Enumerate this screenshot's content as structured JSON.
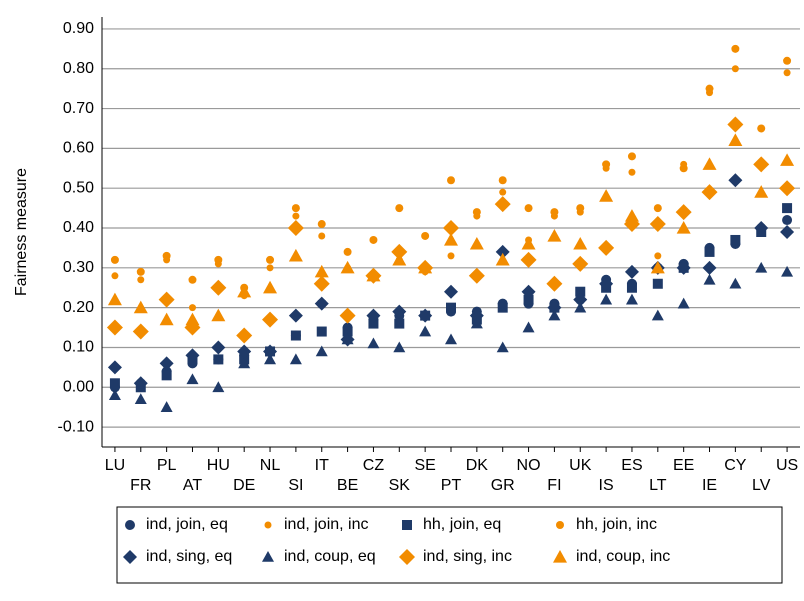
{
  "chart_data": {
    "type": "scatter",
    "y_label": "Fairness measure",
    "categories": [
      "LU",
      "FR",
      "PL",
      "AT",
      "HU",
      "DE",
      "NL",
      "SI",
      "IT",
      "BE",
      "CZ",
      "SK",
      "SE",
      "PT",
      "DK",
      "GR",
      "NO",
      "FI",
      "UK",
      "IS",
      "ES",
      "LT",
      "EE",
      "IE",
      "CY",
      "LV",
      "US"
    ],
    "ylim": [
      -0.15,
      0.93
    ],
    "yticks": [
      {
        "value": -0.1,
        "label": "-0.10"
      },
      {
        "value": 0,
        "label": "0.00"
      },
      {
        "value": 0.1,
        "label": "0.10"
      },
      {
        "value": 0.2,
        "label": "0.20"
      },
      {
        "value": 0.3,
        "label": "0.30"
      },
      {
        "value": 0.4,
        "label": "0.40"
      },
      {
        "value": 0.5,
        "label": "0.50"
      },
      {
        "value": 0.6,
        "label": "0.60"
      },
      {
        "value": 0.7,
        "label": "0.70"
      },
      {
        "value": 0.8,
        "label": "0.80"
      },
      {
        "value": 0.9,
        "label": "0.90"
      }
    ],
    "grid": true,
    "legend": "bottom",
    "series": [
      {
        "name": "ind, join, eq",
        "color": "#1f3a68",
        "marker": "circle",
        "size": 5,
        "values": [
          0.0,
          0.01,
          0.04,
          0.06,
          0.07,
          0.08,
          0.09,
          0.13,
          0.21,
          0.15,
          0.17,
          0.18,
          0.18,
          0.19,
          0.19,
          0.21,
          0.21,
          0.21,
          0.22,
          0.27,
          0.26,
          0.3,
          0.31,
          0.35,
          0.36,
          0.4,
          0.42
        ]
      },
      {
        "name": "ind, join, inc",
        "color": "#f28c00",
        "marker": "circle",
        "size": 3.5,
        "values": [
          0.28,
          0.27,
          0.32,
          0.2,
          0.31,
          0.23,
          0.3,
          0.43,
          0.38,
          0.3,
          0.28,
          0.32,
          0.29,
          0.33,
          0.43,
          0.49,
          0.37,
          0.43,
          0.44,
          0.55,
          0.54,
          0.33,
          0.56,
          0.74,
          0.8,
          0.65,
          0.79
        ]
      },
      {
        "name": "hh, join, eq",
        "color": "#1f3a68",
        "marker": "square",
        "size": 5,
        "values": [
          0.01,
          0.0,
          0.03,
          0.07,
          0.07,
          0.07,
          0.09,
          0.13,
          0.14,
          0.14,
          0.16,
          0.16,
          0.18,
          0.2,
          0.17,
          0.2,
          0.22,
          0.2,
          0.24,
          0.25,
          0.25,
          0.26,
          0.3,
          0.34,
          0.37,
          0.39,
          0.45
        ]
      },
      {
        "name": "hh, join, inc",
        "color": "#f28c00",
        "marker": "circle",
        "size": 4,
        "values": [
          0.32,
          0.29,
          0.33,
          0.27,
          0.32,
          0.25,
          0.32,
          0.45,
          0.41,
          0.34,
          0.37,
          0.45,
          0.38,
          0.52,
          0.44,
          0.52,
          0.45,
          0.44,
          0.45,
          0.56,
          0.58,
          0.45,
          0.55,
          0.75,
          0.85,
          0.65,
          0.82
        ]
      },
      {
        "name": "ind, sing, eq",
        "color": "#1f3a68",
        "marker": "diamond",
        "size": 7,
        "values": [
          0.05,
          0.01,
          0.06,
          0.08,
          0.1,
          0.09,
          0.09,
          0.18,
          0.21,
          0.12,
          0.18,
          0.19,
          0.18,
          0.24,
          0.18,
          0.34,
          0.24,
          0.2,
          0.22,
          0.26,
          0.29,
          0.3,
          0.3,
          0.3,
          0.52,
          0.4,
          0.39
        ]
      },
      {
        "name": "ind, coup, eq",
        "color": "#1f3a68",
        "marker": "triangle",
        "size": 6,
        "values": [
          -0.02,
          -0.03,
          -0.05,
          0.02,
          0.0,
          0.06,
          0.07,
          0.07,
          0.09,
          0.12,
          0.11,
          0.1,
          0.14,
          0.12,
          0.16,
          0.1,
          0.15,
          0.18,
          0.2,
          0.22,
          0.22,
          0.18,
          0.21,
          0.27,
          0.26,
          0.3,
          0.29
        ]
      },
      {
        "name": "ind, sing, inc",
        "color": "#f28c00",
        "marker": "diamond",
        "size": 8,
        "values": [
          0.15,
          0.14,
          0.22,
          0.15,
          0.25,
          0.13,
          0.17,
          0.4,
          0.26,
          0.18,
          0.28,
          0.34,
          0.3,
          0.4,
          0.28,
          0.46,
          0.32,
          0.26,
          0.31,
          0.35,
          0.41,
          0.41,
          0.44,
          0.49,
          0.66,
          0.56,
          0.5
        ]
      },
      {
        "name": "ind, coup, inc",
        "color": "#f28c00",
        "marker": "triangle",
        "size": 7,
        "values": [
          0.22,
          0.2,
          0.17,
          0.17,
          0.18,
          0.24,
          0.25,
          0.33,
          0.29,
          0.3,
          0.28,
          0.32,
          0.3,
          0.37,
          0.36,
          0.32,
          0.36,
          0.38,
          0.36,
          0.48,
          0.43,
          0.3,
          0.4,
          0.56,
          0.62,
          0.49,
          0.57
        ]
      }
    ]
  }
}
